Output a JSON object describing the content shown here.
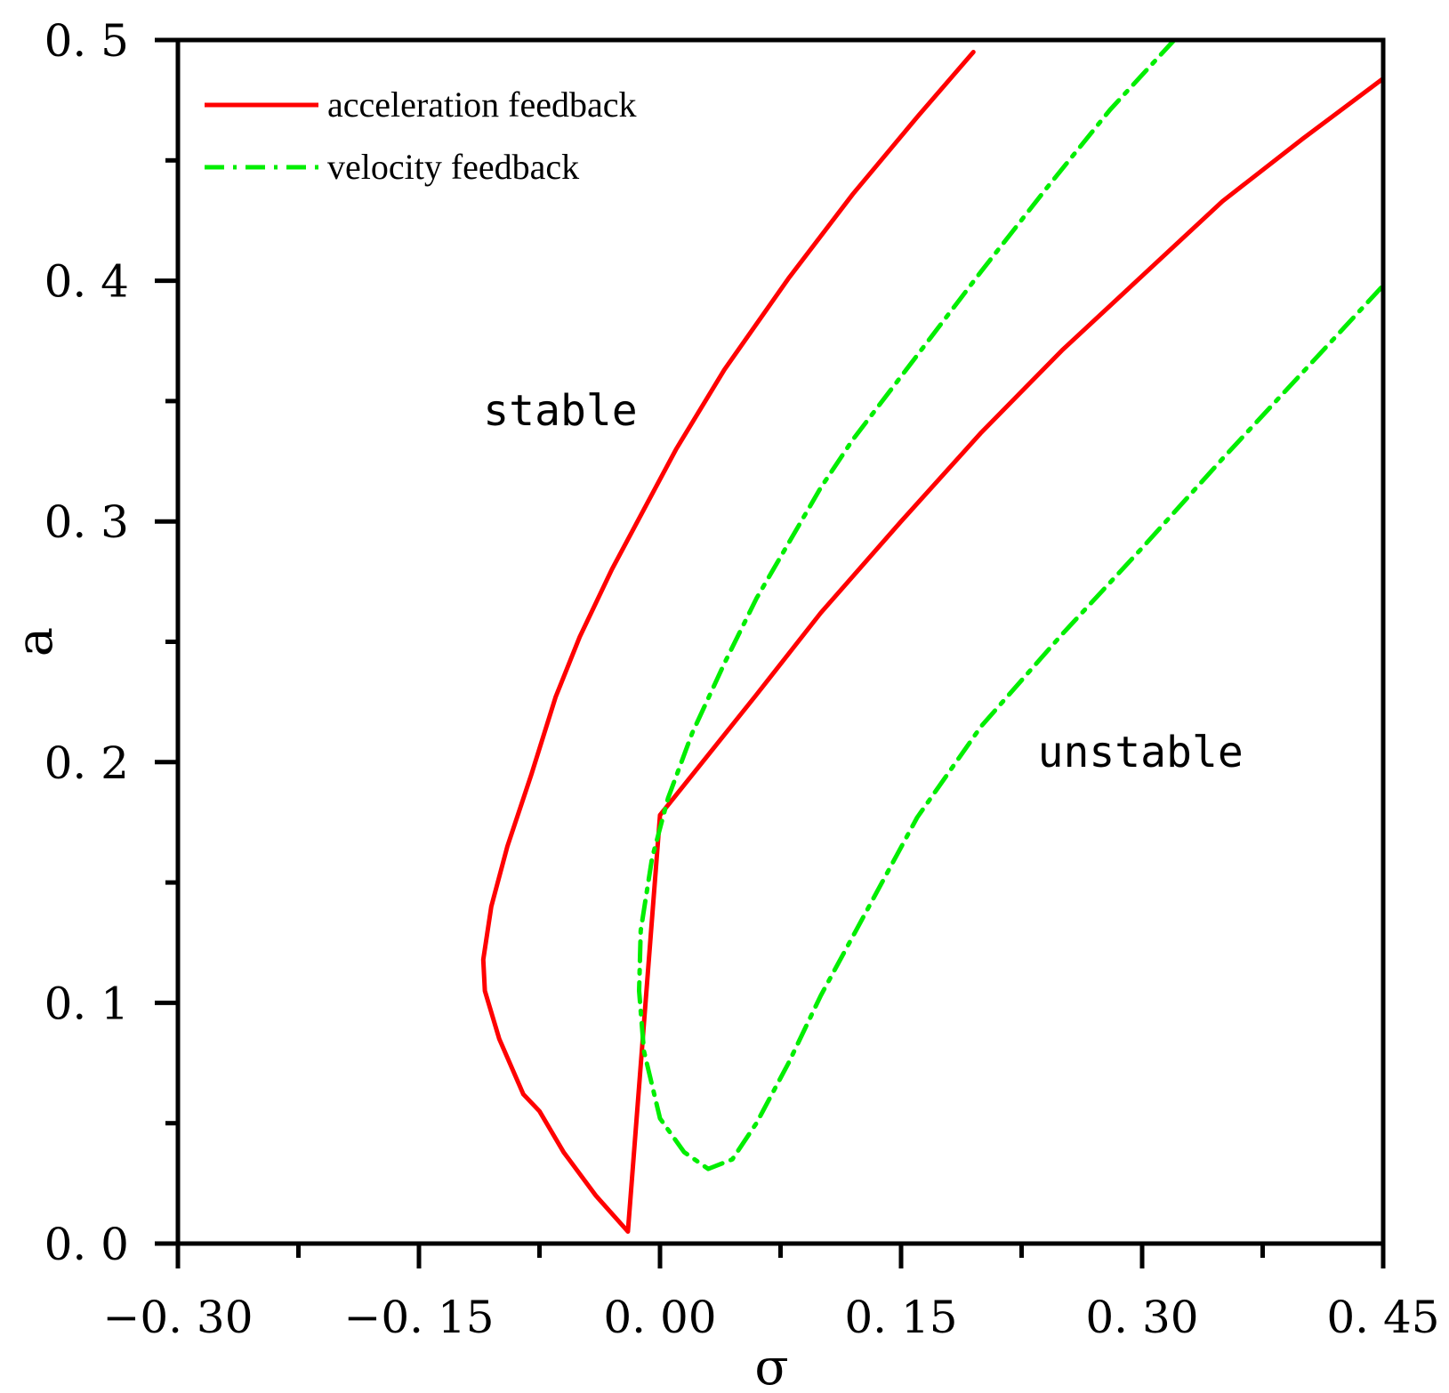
{
  "chart_data": {
    "type": "line",
    "title": "",
    "xlabel": "σ",
    "ylabel": "a",
    "xlim": [
      -0.3,
      0.45
    ],
    "ylim": [
      0.0,
      0.5
    ],
    "x_ticks": [
      -0.3,
      -0.15,
      0.0,
      0.15,
      0.3,
      0.45
    ],
    "x_tick_labels": [
      "−0. 30",
      "−0. 15",
      "0. 00",
      "0. 15",
      "0. 30",
      "0. 45"
    ],
    "y_ticks": [
      0.0,
      0.1,
      0.2,
      0.3,
      0.4,
      0.5
    ],
    "y_tick_labels": [
      "0. 0",
      "0. 1",
      "0. 2",
      "0. 3",
      "0. 4",
      "0. 5"
    ],
    "grid": false,
    "legend_position": "top-left",
    "annotations": [
      {
        "text": "stable",
        "x": -0.11,
        "y": 0.34
      },
      {
        "text": "unstable",
        "x": 0.235,
        "y": 0.198
      }
    ],
    "series": [
      {
        "name": "acceleration feedback",
        "color": "#ff0000",
        "style": "solid",
        "x": [
          0.195,
          0.16,
          0.12,
          0.08,
          0.04,
          0.01,
          -0.01,
          -0.03,
          -0.05,
          -0.065,
          -0.08,
          -0.095,
          -0.105,
          -0.11,
          -0.109,
          -0.1,
          -0.085,
          -0.075,
          -0.06,
          -0.04,
          -0.02,
          0.0,
          0.03,
          0.06,
          0.1,
          0.15,
          0.2,
          0.25,
          0.3,
          0.35,
          0.4,
          0.45
        ],
        "y": [
          0.495,
          0.468,
          0.436,
          0.401,
          0.363,
          0.33,
          0.305,
          0.28,
          0.252,
          0.227,
          0.195,
          0.165,
          0.14,
          0.118,
          0.105,
          0.085,
          0.062,
          0.055,
          0.038,
          0.02,
          0.005,
          0.178,
          0.203,
          0.228,
          0.262,
          0.3,
          0.337,
          0.371,
          0.402,
          0.433,
          0.459,
          0.484
        ]
      },
      {
        "name": "velocity feedback",
        "color": "#00ee00",
        "style": "dashdot",
        "x": [
          0.32,
          0.28,
          0.24,
          0.2,
          0.16,
          0.12,
          0.1,
          0.08,
          0.06,
          0.04,
          0.02,
          0.005,
          -0.005,
          -0.012,
          -0.013,
          -0.01,
          0.0,
          0.015,
          0.03,
          0.045,
          0.06,
          0.08,
          0.1,
          0.13,
          0.16,
          0.2,
          0.25,
          0.3,
          0.35,
          0.4,
          0.45
        ],
        "y": [
          0.5,
          0.471,
          0.438,
          0.404,
          0.369,
          0.334,
          0.314,
          0.291,
          0.268,
          0.241,
          0.212,
          0.185,
          0.16,
          0.13,
          0.105,
          0.08,
          0.052,
          0.038,
          0.031,
          0.035,
          0.05,
          0.075,
          0.103,
          0.14,
          0.177,
          0.215,
          0.253,
          0.289,
          0.326,
          0.362,
          0.398
        ]
      }
    ]
  }
}
